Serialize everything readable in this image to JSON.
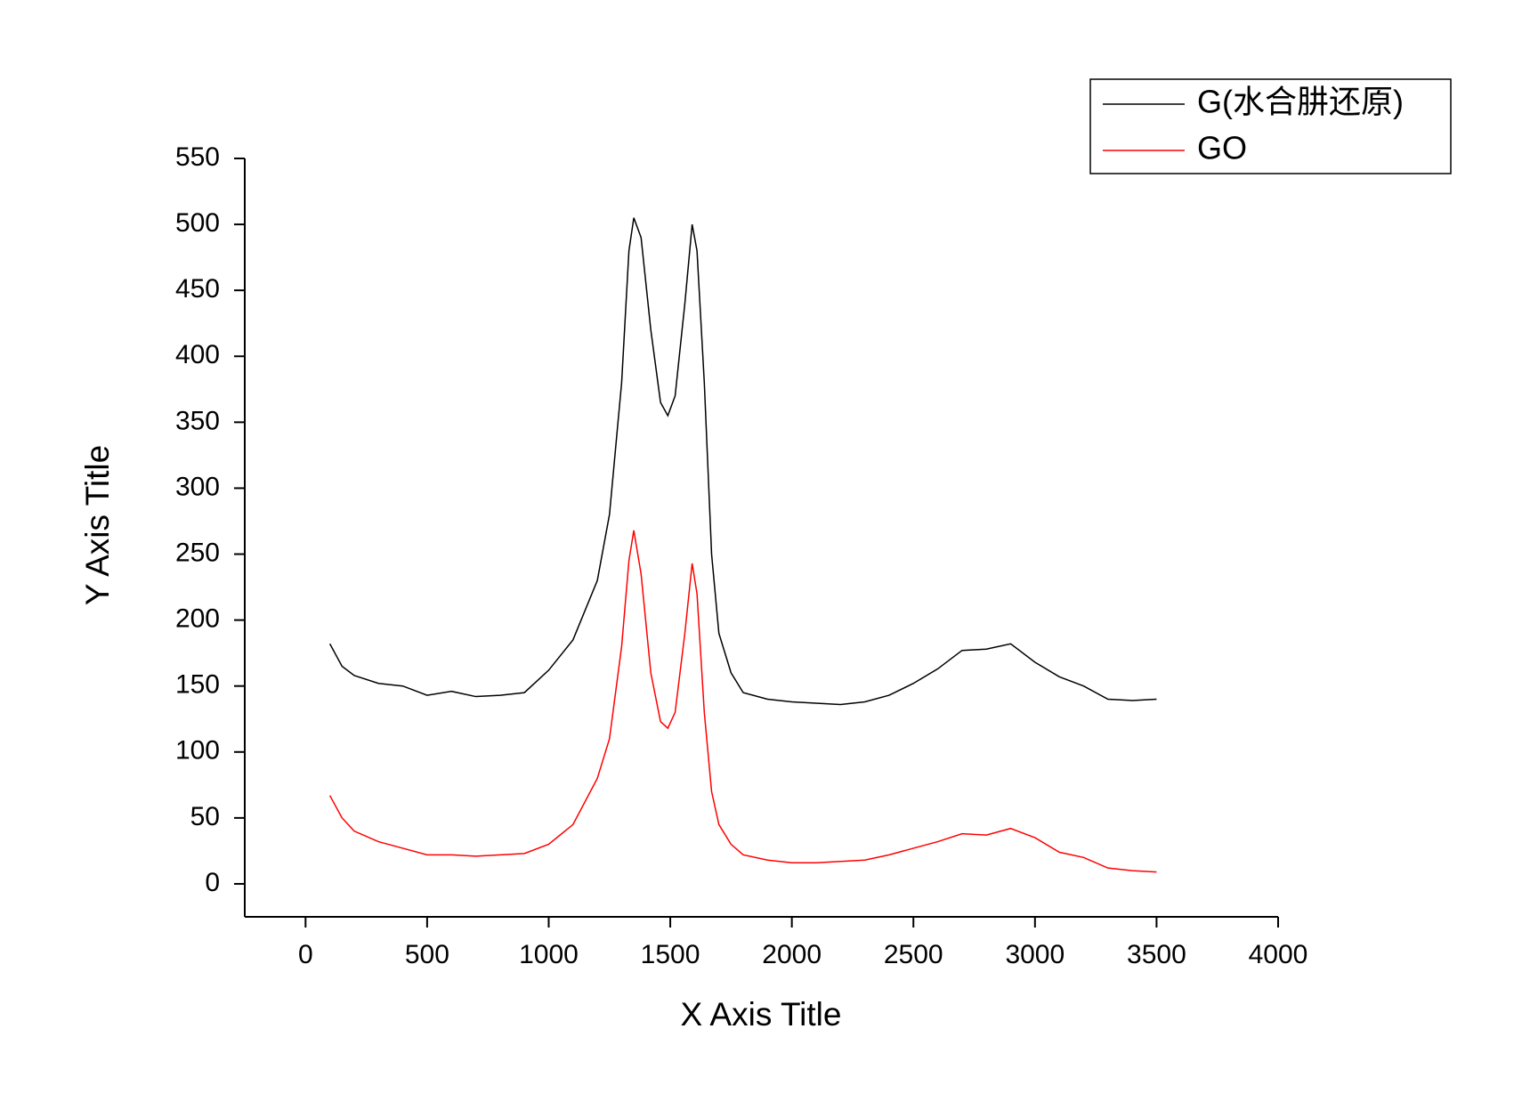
{
  "chart_data": {
    "type": "line",
    "xlabel": "X Axis Title",
    "ylabel": "Y Axis Title",
    "xlim": [
      -250,
      4000
    ],
    "xticks": [
      0,
      500,
      1000,
      1500,
      2000,
      2500,
      3000,
      3500,
      4000
    ],
    "ylim": [
      -25,
      550
    ],
    "yticks": [
      0,
      50,
      100,
      150,
      200,
      250,
      300,
      350,
      400,
      450,
      500,
      550
    ],
    "legend": "upper right",
    "x": [
      100,
      150,
      200,
      300,
      400,
      500,
      600,
      700,
      800,
      900,
      1000,
      1100,
      1200,
      1250,
      1300,
      1330,
      1350,
      1380,
      1420,
      1460,
      1490,
      1520,
      1560,
      1590,
      1610,
      1640,
      1670,
      1700,
      1750,
      1800,
      1900,
      2000,
      2100,
      2200,
      2300,
      2400,
      2500,
      2600,
      2700,
      2800,
      2900,
      3000,
      3100,
      3200,
      3300,
      3400,
      3500
    ],
    "series": [
      {
        "name": "G(水合肼还原)",
        "color": "#000000",
        "values": [
          182,
          165,
          158,
          152,
          150,
          143,
          146,
          142,
          143,
          145,
          162,
          185,
          230,
          280,
          380,
          480,
          505,
          490,
          420,
          365,
          355,
          370,
          440,
          500,
          480,
          380,
          250,
          190,
          160,
          145,
          140,
          138,
          137,
          136,
          138,
          143,
          152,
          163,
          177,
          178,
          182,
          168,
          157,
          150,
          140,
          139,
          140
        ]
      },
      {
        "name": "GO",
        "color": "#ff0000",
        "values": [
          67,
          50,
          40,
          32,
          27,
          22,
          22,
          21,
          22,
          23,
          30,
          45,
          80,
          110,
          180,
          245,
          268,
          235,
          160,
          123,
          118,
          130,
          190,
          243,
          220,
          130,
          70,
          45,
          30,
          22,
          18,
          16,
          16,
          17,
          18,
          22,
          27,
          32,
          38,
          37,
          42,
          35,
          24,
          20,
          12,
          10,
          9
        ]
      }
    ]
  }
}
